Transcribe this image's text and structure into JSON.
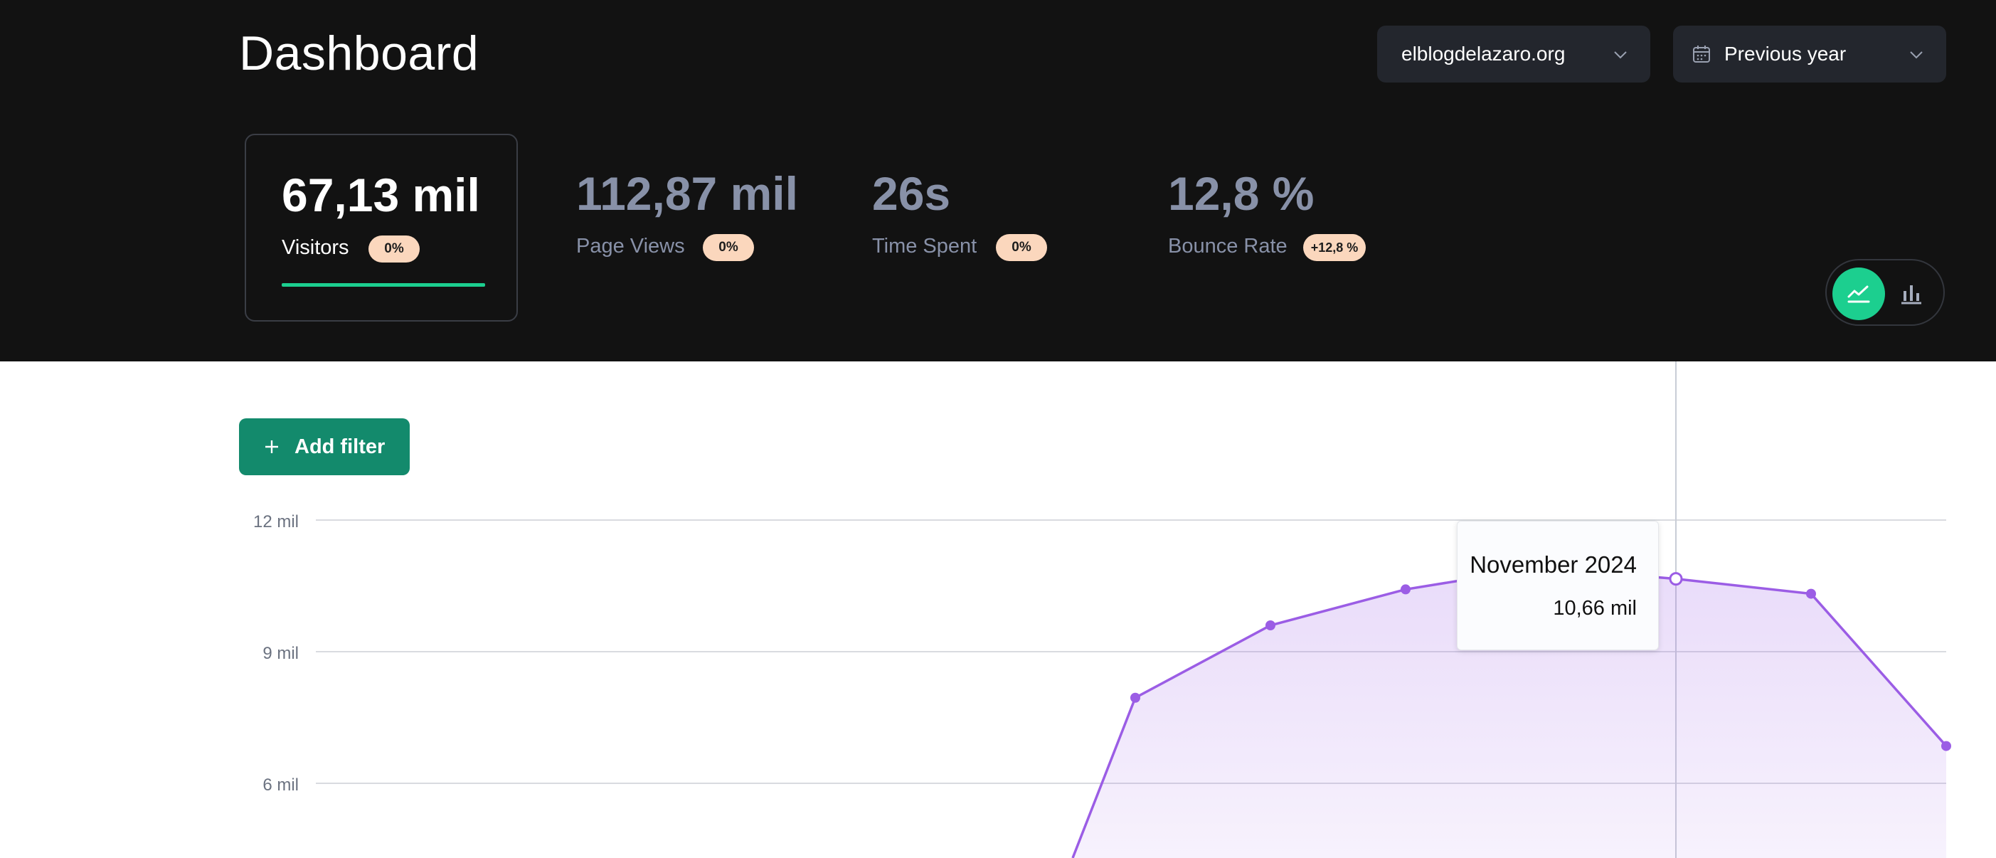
{
  "header": {
    "title": "Dashboard",
    "site_selector": {
      "value": "elblogdelazaro.org",
      "icon": "chevron-down-icon"
    },
    "period_selector": {
      "value": "Previous year",
      "icon": "calendar-icon"
    },
    "background": "#121212"
  },
  "metrics": [
    {
      "value": "67,13 mil",
      "label": "Visitors",
      "change": "0%",
      "selected": true
    },
    {
      "value": "112,87 mil",
      "label": "Page Views",
      "change": "0%"
    },
    {
      "value": "26s",
      "label": "Time Spent",
      "change": "0%"
    },
    {
      "value": "12,8 %",
      "label": "Bounce Rate",
      "change": "+12,8 %"
    }
  ],
  "chart_toggle": {
    "options": [
      "line-chart-icon",
      "bar-chart-icon"
    ],
    "active": "line-chart-icon"
  },
  "filter": {
    "add_label": "Add filter"
  },
  "colors": {
    "accent": "#1ccf8f",
    "series": "#9b5de5",
    "badge_bg": "#fbd7bd",
    "button": "#138a6c"
  },
  "tooltip": {
    "title": "November 2024",
    "value": "10,66 mil"
  },
  "chart_data": {
    "type": "area",
    "y_tick_labels": [
      "12 mil",
      "9 mil",
      "6 mil"
    ],
    "ylim": [
      0,
      12000
    ],
    "grid": true,
    "series": [
      {
        "values": [
          7950,
          9600,
          10420,
          10920,
          10660,
          10320,
          6850
        ],
        "highlighted_index": 4
      }
    ]
  }
}
